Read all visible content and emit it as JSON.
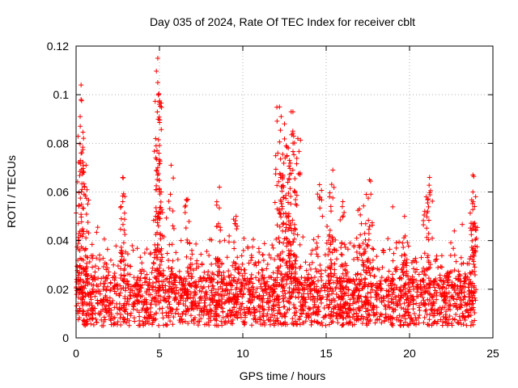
{
  "chart_data": {
    "type": "scatter",
    "title": "Day 035 of 2024, Rate Of TEC Index for receiver cblt",
    "xlabel": "GPS time / hours",
    "ylabel": "ROTI / TECUs",
    "xlim": [
      0,
      25
    ],
    "ylim": [
      0,
      0.12
    ],
    "xticks": [
      0,
      5,
      10,
      15,
      20,
      25
    ],
    "xtick_labels": [
      "0",
      "5",
      "10",
      "15",
      "20",
      "25"
    ],
    "yticks": [
      0,
      0.02,
      0.04,
      0.06,
      0.08,
      0.1,
      0.12
    ],
    "ytick_labels": [
      "0",
      "0.02",
      "0.04",
      "0.06",
      "0.08",
      "0.1",
      "0.12"
    ],
    "grid": true,
    "marker": "+",
    "series": [
      {
        "name": "ROTI",
        "color": "#ff0000",
        "x_range": [
          0,
          24
        ],
        "typical_band": [
          0.005,
          0.025
        ],
        "notable_points": [
          {
            "x": 0.3,
            "y": 0.104
          },
          {
            "x": 0.3,
            "y": 0.098
          },
          {
            "x": 0.25,
            "y": 0.087
          },
          {
            "x": 0.3,
            "y": 0.076
          },
          {
            "x": 0.6,
            "y": 0.071
          },
          {
            "x": 0.5,
            "y": 0.062
          },
          {
            "x": 2.8,
            "y": 0.066
          },
          {
            "x": 2.8,
            "y": 0.056
          },
          {
            "x": 4.9,
            "y": 0.115
          },
          {
            "x": 4.9,
            "y": 0.105
          },
          {
            "x": 4.95,
            "y": 0.1
          },
          {
            "x": 5.0,
            "y": 0.097
          },
          {
            "x": 4.8,
            "y": 0.079
          },
          {
            "x": 4.9,
            "y": 0.07
          },
          {
            "x": 5.1,
            "y": 0.06
          },
          {
            "x": 5.7,
            "y": 0.071
          },
          {
            "x": 6.7,
            "y": 0.057
          },
          {
            "x": 8.6,
            "y": 0.062
          },
          {
            "x": 9.6,
            "y": 0.05
          },
          {
            "x": 12.2,
            "y": 0.095
          },
          {
            "x": 12.3,
            "y": 0.091
          },
          {
            "x": 12.9,
            "y": 0.093
          },
          {
            "x": 12.5,
            "y": 0.088
          },
          {
            "x": 13.0,
            "y": 0.085
          },
          {
            "x": 13.3,
            "y": 0.082
          },
          {
            "x": 12.6,
            "y": 0.079
          },
          {
            "x": 12.1,
            "y": 0.076
          },
          {
            "x": 12.8,
            "y": 0.073
          },
          {
            "x": 13.0,
            "y": 0.069
          },
          {
            "x": 12.4,
            "y": 0.067
          },
          {
            "x": 12.7,
            "y": 0.064
          },
          {
            "x": 15.4,
            "y": 0.069
          },
          {
            "x": 14.6,
            "y": 0.063
          },
          {
            "x": 15.2,
            "y": 0.058
          },
          {
            "x": 16.0,
            "y": 0.056
          },
          {
            "x": 17.0,
            "y": 0.053
          },
          {
            "x": 17.6,
            "y": 0.065
          },
          {
            "x": 17.4,
            "y": 0.059
          },
          {
            "x": 19.7,
            "y": 0.05
          },
          {
            "x": 21.2,
            "y": 0.066
          },
          {
            "x": 21.0,
            "y": 0.058
          },
          {
            "x": 23.8,
            "y": 0.067
          },
          {
            "x": 23.8,
            "y": 0.06
          },
          {
            "x": 23.9,
            "y": 0.054
          }
        ]
      }
    ]
  }
}
